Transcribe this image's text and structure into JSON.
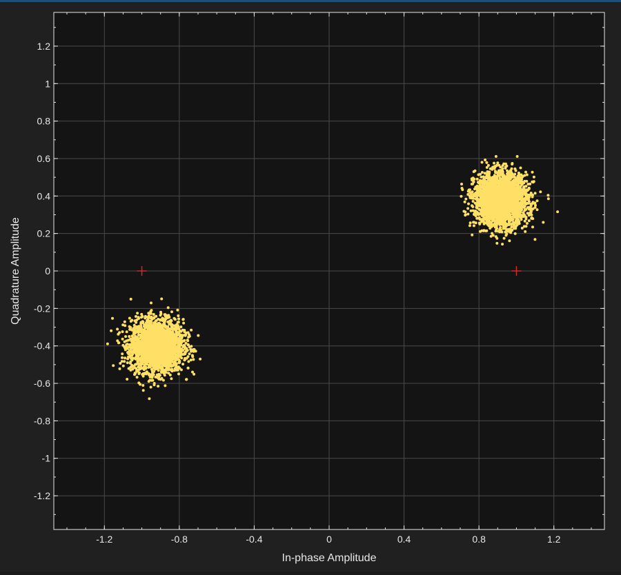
{
  "colors": {
    "figure_bg": "#202020",
    "axes_bg": "#141414",
    "grid": "#4a4a4a",
    "axes": "#e8e8e8",
    "points": "#ffe066",
    "reference": "#d62828"
  },
  "chart_data": {
    "type": "scatter",
    "title": "",
    "xlabel": "In-phase Amplitude",
    "ylabel": "Quadrature Amplitude",
    "xlim": [
      -1.47,
      1.47
    ],
    "ylim": [
      -1.38,
      1.38
    ],
    "xticks": [
      -1.2,
      -0.8,
      -0.4,
      0,
      0.4,
      0.8,
      1.2
    ],
    "yticks": [
      1.2,
      1,
      0.8,
      0.6,
      0.4,
      0.2,
      0,
      -0.2,
      -0.4,
      -0.6,
      -0.8,
      -1,
      -1.2
    ],
    "x_tick_labels": [
      "-1.2",
      "-0.8",
      "-0.4",
      "0",
      "0.4",
      "0.8",
      "1.2"
    ],
    "y_tick_labels": [
      "1.2",
      "1",
      "0.8",
      "0.6",
      "0.4",
      "0.2",
      "0",
      "-0.2",
      "-0.4",
      "-0.6",
      "-0.8",
      "-1",
      "-1.2"
    ],
    "grid": true,
    "legend": "none",
    "series": [
      {
        "marker": "point",
        "color": "#ffe066",
        "clusters": [
          {
            "center": [
              -0.92,
              -0.4
            ],
            "spread": 0.07
          },
          {
            "center": [
              0.92,
              0.38
            ],
            "spread": 0.07
          }
        ]
      },
      {
        "marker": "plus",
        "color": "#d62828",
        "points": [
          [
            -1,
            0
          ],
          [
            1,
            0
          ]
        ]
      }
    ]
  }
}
